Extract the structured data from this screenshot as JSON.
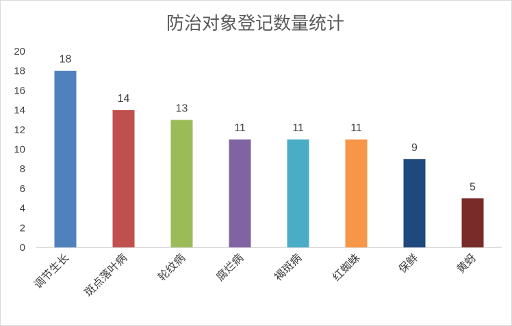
{
  "chart_data": {
    "type": "bar",
    "title": "防治对象登记数量统计",
    "categories": [
      "调节生长",
      "斑点落叶病",
      "轮纹病",
      "腐烂病",
      "褐斑病",
      "红蜘蛛",
      "保鲜",
      "黄蚜"
    ],
    "values": [
      18,
      14,
      13,
      11,
      11,
      11,
      9,
      5
    ],
    "colors": [
      "#4f81bd",
      "#c0504d",
      "#9bbb59",
      "#8064a2",
      "#4bacc6",
      "#f79646",
      "#1f497d",
      "#772c2a"
    ],
    "ylim": [
      0,
      20
    ],
    "yticks": [
      0,
      2,
      4,
      6,
      8,
      10,
      12,
      14,
      16,
      18,
      20
    ],
    "xlabel": "",
    "ylabel": "",
    "grid": false,
    "legend": "none",
    "data_labels": true
  }
}
